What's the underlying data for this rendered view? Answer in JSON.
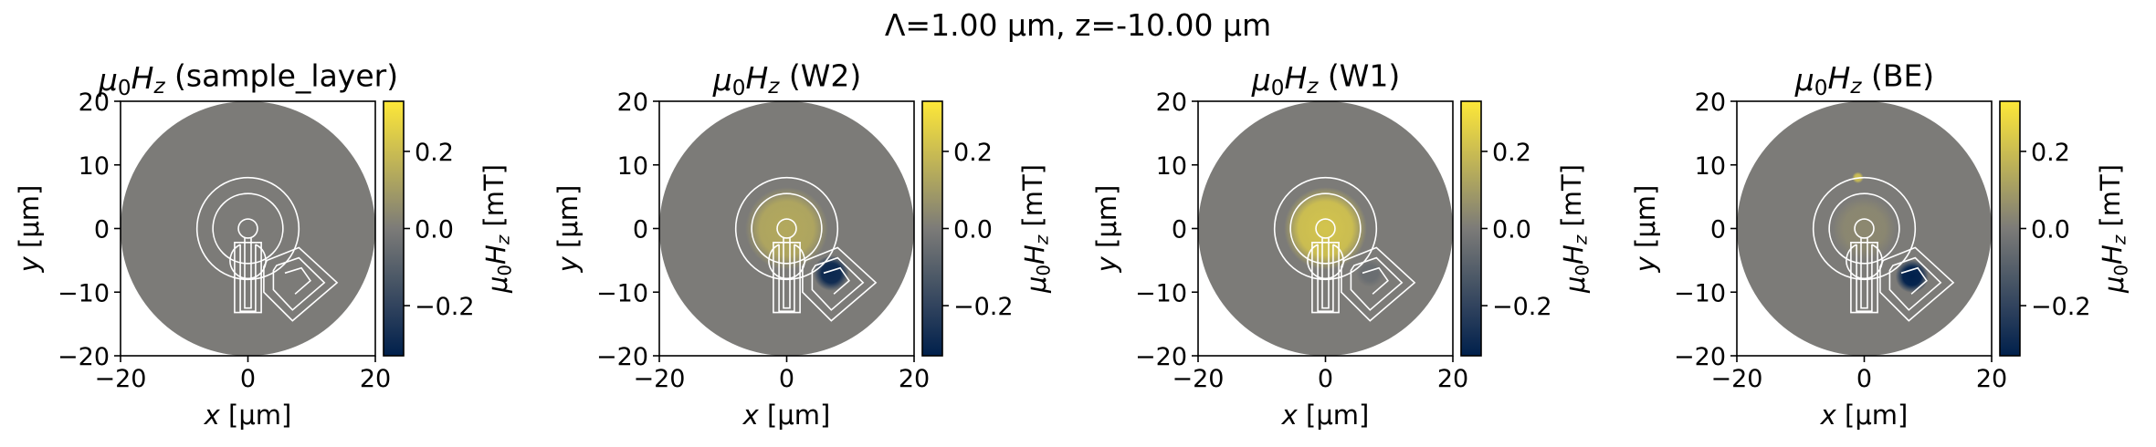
{
  "figure": {
    "suptitle": "Λ=1.00 μm, z=-10.00 μm",
    "colors": {
      "cmap_low": "#00204c",
      "cmap_mid": "#7c7b78",
      "cmap_high": "#fee838",
      "outline": "#ffffff"
    }
  },
  "chart_data": [
    {
      "type": "heatmap",
      "title": "μ0Hz (sample_layer)",
      "xlabel": "x [μm]",
      "ylabel": "y [μm]",
      "colorbar_label": "μ0Hz [mT]",
      "xlim": [
        -20,
        20
      ],
      "ylim": [
        -20,
        20
      ],
      "xticks": [
        -20,
        0,
        20
      ],
      "yticks": [
        -20,
        -10,
        0,
        10,
        20
      ],
      "clim": [
        -0.33,
        0.33
      ],
      "cbar_ticks": [
        -0.2,
        0.0,
        0.2
      ],
      "cmap": "cividis",
      "domain_radius": 20,
      "field_features": []
    },
    {
      "type": "heatmap",
      "title": "μ0Hz (W2)",
      "xlabel": "x [μm]",
      "ylabel": "y [μm]",
      "colorbar_label": "μ0Hz [mT]",
      "xlim": [
        -20,
        20
      ],
      "ylim": [
        -20,
        20
      ],
      "xticks": [
        -20,
        0,
        20
      ],
      "yticks": [
        -20,
        -10,
        0,
        10,
        20
      ],
      "clim": [
        -0.33,
        0.33
      ],
      "cbar_ticks": [
        -0.2,
        0.0,
        0.2
      ],
      "cmap": "cividis",
      "domain_radius": 20,
      "field_features": [
        {
          "kind": "disk",
          "cx": 0,
          "cy": 0,
          "r": 6.5,
          "value": 0.14
        },
        {
          "kind": "spot",
          "cx": 7,
          "cy": -7,
          "r": 2.8,
          "value": -0.3
        }
      ]
    },
    {
      "type": "heatmap",
      "title": "μ0Hz (W1)",
      "xlabel": "x [μm]",
      "ylabel": "y [μm]",
      "colorbar_label": "μ0Hz [mT]",
      "xlim": [
        -20,
        20
      ],
      "ylim": [
        -20,
        20
      ],
      "xticks": [
        -20,
        0,
        20
      ],
      "yticks": [
        -20,
        -10,
        0,
        10,
        20
      ],
      "clim": [
        -0.33,
        0.33
      ],
      "cbar_ticks": [
        -0.2,
        0.0,
        0.2
      ],
      "cmap": "cividis",
      "domain_radius": 20,
      "field_features": [
        {
          "kind": "disk",
          "cx": 0,
          "cy": 0,
          "r": 6.5,
          "value": 0.22
        },
        {
          "kind": "spot",
          "cx": 7,
          "cy": -7,
          "r": 2.2,
          "value": -0.05
        }
      ]
    },
    {
      "type": "heatmap",
      "title": "μ0Hz (BE)",
      "xlabel": "x [μm]",
      "ylabel": "y [μm]",
      "colorbar_label": "μ0Hz [mT]",
      "xlim": [
        -20,
        20
      ],
      "ylim": [
        -20,
        20
      ],
      "xticks": [
        -20,
        0,
        20
      ],
      "yticks": [
        -20,
        -10,
        0,
        10,
        20
      ],
      "clim": [
        -0.33,
        0.33
      ],
      "cbar_ticks": [
        -0.2,
        0.0,
        0.2
      ],
      "cmap": "cividis",
      "domain_radius": 20,
      "field_features": [
        {
          "kind": "disk",
          "cx": 0,
          "cy": 0,
          "r": 5,
          "value": 0.04
        },
        {
          "kind": "spot",
          "cx": 7.5,
          "cy": -7.5,
          "r": 2.6,
          "value": -0.33
        },
        {
          "kind": "spot",
          "cx": -1,
          "cy": 8,
          "r": 0.9,
          "value": 0.2
        }
      ]
    }
  ]
}
